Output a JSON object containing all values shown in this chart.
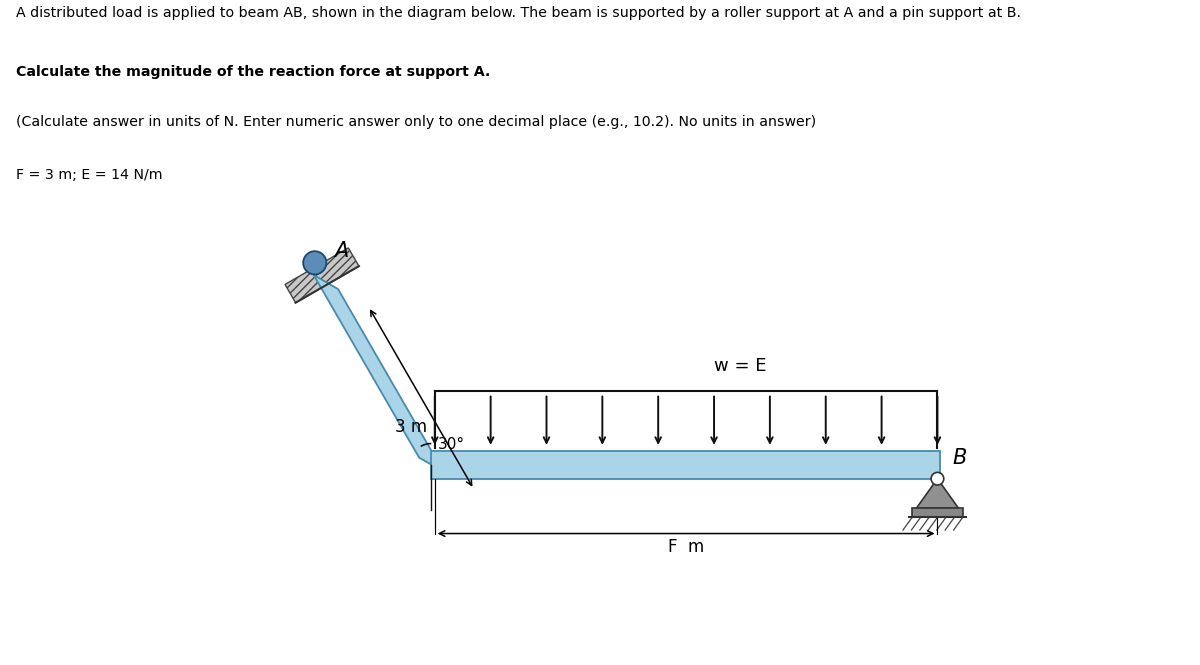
{
  "line1": "A distributed load is applied to beam AB, shown in the diagram below. The beam is supported by a roller support at A and a pin support at B.",
  "line2": "Calculate the magnitude of the reaction force at support A.",
  "line3": "(Calculate answer in units of N. Enter numeric answer only to one decimal place (e.g., 10.2). No units in answer)",
  "line4": "F = 3 m; E = 14 N/m",
  "beam_color": "#aad4e8",
  "beam_edge_color": "#4a8aaa",
  "wall_color": "#b8b8b8",
  "wall_hatch_color": "#555555",
  "arrow_color": "#111111",
  "angle_label": "30°",
  "dim_label_3m": "3 m",
  "dim_label_Fm": "F  m",
  "w_label": "w = E",
  "A_label": "A",
  "B_label": "B",
  "bg_color": "#ffffff",
  "roller_color": "#5b8db8",
  "pin_color": "#909090"
}
